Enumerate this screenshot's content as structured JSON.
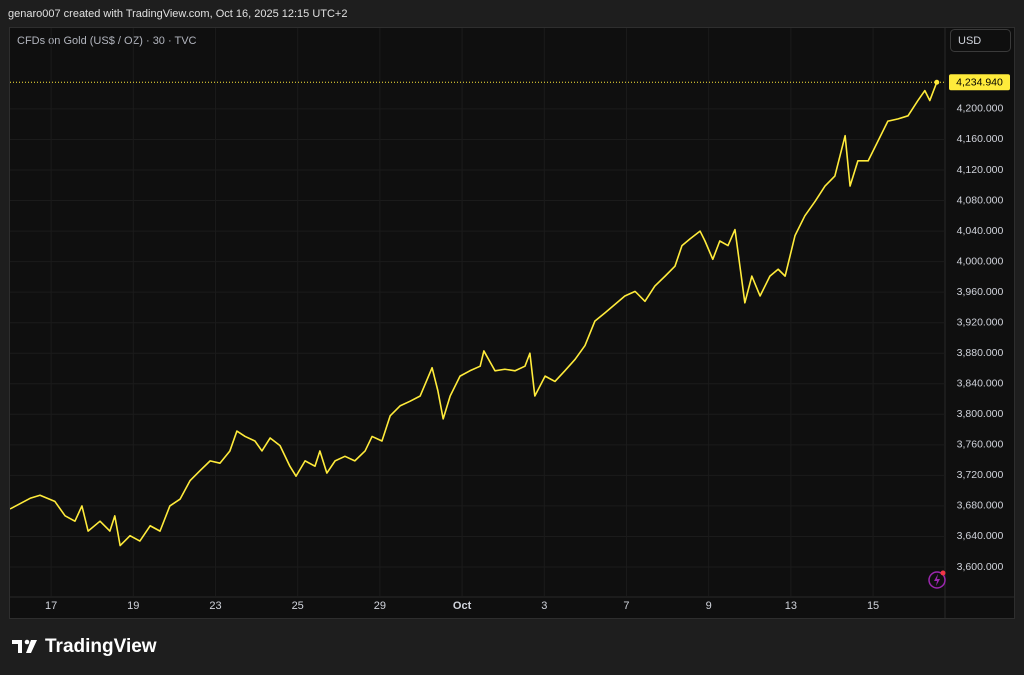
{
  "caption": "genaro007 created with TradingView.com, Oct 16, 2025 12:15 UTC+2",
  "brand": "TradingView",
  "chart_data": {
    "type": "line",
    "title": "CFDs on Gold (US$ / OZ) · 30 · TVC",
    "currency": "USD",
    "color": "#ffeb3b",
    "grid": true,
    "x": [
      0,
      0.49,
      0.73,
      1.09,
      1.34,
      1.58,
      1.75,
      1.9,
      2.19,
      2.43,
      2.55,
      2.68,
      2.92,
      3.16,
      3.41,
      3.65,
      3.89,
      4.14,
      4.38,
      4.62,
      4.87,
      5.11,
      5.35,
      5.52,
      5.72,
      5.96,
      6.13,
      6.33,
      6.57,
      6.81,
      6.96,
      7.18,
      7.42,
      7.54,
      7.71,
      7.91,
      8.15,
      8.39,
      8.64,
      8.81,
      9.05,
      9.25,
      9.49,
      9.73,
      9.98,
      10.27,
      10.41,
      10.54,
      10.71,
      10.95,
      11.19,
      11.44,
      11.53,
      11.8,
      12.04,
      12.29,
      12.53,
      12.65,
      12.77,
      13.02,
      13.26,
      13.5,
      13.75,
      13.99,
      14.23,
      14.48,
      14.72,
      14.96,
      15.21,
      15.45,
      15.69,
      15.94,
      16.18,
      16.35,
      16.55,
      16.79,
      16.91,
      17.1,
      17.27,
      17.47,
      17.64,
      17.76,
      17.88,
      18.05,
      18.25,
      18.49,
      18.69,
      18.86,
      19.1,
      19.34,
      19.59,
      19.83,
      20.07,
      20.32,
      20.44,
      20.63,
      20.88,
      21.12,
      21.36,
      21.61,
      21.85,
      22.09,
      22.26,
      22.38,
      22.55
    ],
    "values": [
      3676,
      3690,
      3694,
      3686,
      3667,
      3660,
      3680,
      3647,
      3660,
      3647,
      3667,
      3628,
      3641,
      3634,
      3654,
      3647,
      3680,
      3689,
      3713,
      3726,
      3739,
      3736,
      3752,
      3778,
      3771,
      3765,
      3752,
      3769,
      3759,
      3732,
      3719,
      3739,
      3732,
      3752,
      3723,
      3739,
      3745,
      3739,
      3752,
      3771,
      3765,
      3798,
      3811,
      3817,
      3824,
      3861,
      3831,
      3794,
      3824,
      3850,
      3857,
      3863,
      3883,
      3857,
      3859,
      3857,
      3863,
      3880,
      3824,
      3850,
      3843,
      3857,
      3872,
      3890,
      3922,
      3933,
      3944,
      3955,
      3961,
      3948,
      3968,
      3981,
      3994,
      4021,
      4030,
      4040,
      4027,
      4003,
      4027,
      4021,
      4042,
      3994,
      3946,
      3981,
      3955,
      3981,
      3990,
      3981,
      4034,
      4060,
      4079,
      4099,
      4112,
      4165,
      4099,
      4132,
      4132,
      4158,
      4184,
      4187,
      4191,
      4211,
      4224,
      4211,
      4234.94
    ],
    "xlim": [
      0,
      22.75
    ],
    "xticks": [
      {
        "value": 1,
        "label": "17"
      },
      {
        "value": 3,
        "label": "19"
      },
      {
        "value": 5,
        "label": "23"
      },
      {
        "value": 7,
        "label": "25"
      },
      {
        "value": 9,
        "label": "29"
      },
      {
        "value": 11,
        "label": "Oct"
      },
      {
        "value": 13,
        "label": "3"
      },
      {
        "value": 15,
        "label": "7"
      },
      {
        "value": 17,
        "label": "9"
      },
      {
        "value": 19,
        "label": "13"
      },
      {
        "value": 21,
        "label": "15"
      }
    ],
    "ylim": [
      3562,
      4306
    ],
    "yticks": [
      {
        "value": 3600,
        "label": "3,600.000"
      },
      {
        "value": 3640,
        "label": "3,640.000"
      },
      {
        "value": 3680,
        "label": "3,680.000"
      },
      {
        "value": 3720,
        "label": "3,720.000"
      },
      {
        "value": 3760,
        "label": "3,760.000"
      },
      {
        "value": 3800,
        "label": "3,800.000"
      },
      {
        "value": 3840,
        "label": "3,840.000"
      },
      {
        "value": 3880,
        "label": "3,880.000"
      },
      {
        "value": 3920,
        "label": "3,920.000"
      },
      {
        "value": 3960,
        "label": "3,960.000"
      },
      {
        "value": 4000,
        "label": "4,000.000"
      },
      {
        "value": 4040,
        "label": "4,040.000"
      },
      {
        "value": 4080,
        "label": "4,080.000"
      },
      {
        "value": 4120,
        "label": "4,120.000"
      },
      {
        "value": 4160,
        "label": "4,160.000"
      },
      {
        "value": 4200,
        "label": "4,200.000"
      }
    ],
    "last_price": {
      "value": 4234.94,
      "label": "4,234.940"
    }
  }
}
